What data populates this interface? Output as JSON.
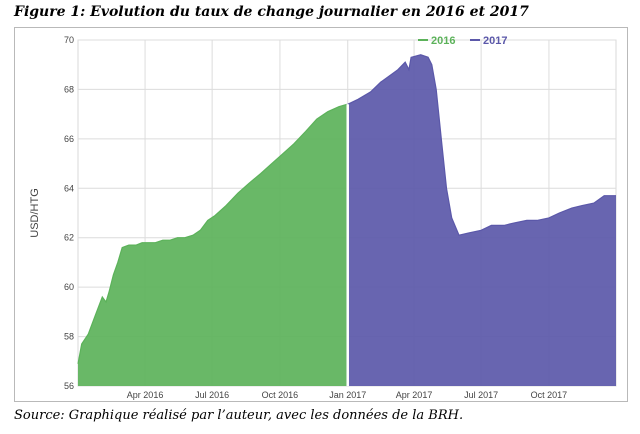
{
  "figure": {
    "title": "Figure 1: Evolution du taux de change journalier en 2016 et 2017",
    "source": "Source: Graphique réalisé par l’auteur, avec les données de la BRH."
  },
  "chart_data": {
    "type": "area",
    "ylabel": "USD/HTG",
    "xlabel": "",
    "ylim": [
      56,
      70
    ],
    "xlim": [
      "2016-01-01",
      "2017-12-31"
    ],
    "yticks": [
      56,
      58,
      60,
      62,
      64,
      66,
      68,
      70
    ],
    "xticks": [
      {
        "date": "2016-04-01",
        "label": "Apr 2016"
      },
      {
        "date": "2016-07-01",
        "label": "Jul 2016"
      },
      {
        "date": "2016-10-01",
        "label": "Oct 2016"
      },
      {
        "date": "2017-01-01",
        "label": "Jan 2017"
      },
      {
        "date": "2017-04-01",
        "label": "Apr 2017"
      },
      {
        "date": "2017-07-01",
        "label": "Jul 2017"
      },
      {
        "date": "2017-10-01",
        "label": "Oct 2017"
      }
    ],
    "grid": true,
    "legend_position": "top-center",
    "series": [
      {
        "name": "2016",
        "color": "#5cb25a",
        "points": [
          [
            "2016-01-01",
            56.9
          ],
          [
            "2016-01-06",
            57.7
          ],
          [
            "2016-01-15",
            58.1
          ],
          [
            "2016-01-25",
            58.9
          ],
          [
            "2016-02-03",
            59.6
          ],
          [
            "2016-02-08",
            59.4
          ],
          [
            "2016-02-12",
            59.8
          ],
          [
            "2016-02-18",
            60.5
          ],
          [
            "2016-02-24",
            61.0
          ],
          [
            "2016-03-01",
            61.6
          ],
          [
            "2016-03-10",
            61.7
          ],
          [
            "2016-03-20",
            61.7
          ],
          [
            "2016-03-28",
            61.8
          ],
          [
            "2016-04-05",
            61.8
          ],
          [
            "2016-04-15",
            61.8
          ],
          [
            "2016-04-25",
            61.9
          ],
          [
            "2016-05-05",
            61.9
          ],
          [
            "2016-05-15",
            62.0
          ],
          [
            "2016-05-25",
            62.0
          ],
          [
            "2016-06-05",
            62.1
          ],
          [
            "2016-06-15",
            62.3
          ],
          [
            "2016-06-25",
            62.7
          ],
          [
            "2016-07-05",
            62.9
          ],
          [
            "2016-07-20",
            63.3
          ],
          [
            "2016-08-05",
            63.8
          ],
          [
            "2016-08-20",
            64.2
          ],
          [
            "2016-09-05",
            64.6
          ],
          [
            "2016-09-20",
            65.0
          ],
          [
            "2016-10-05",
            65.4
          ],
          [
            "2016-10-20",
            65.8
          ],
          [
            "2016-11-05",
            66.3
          ],
          [
            "2016-11-20",
            66.8
          ],
          [
            "2016-12-05",
            67.1
          ],
          [
            "2016-12-20",
            67.3
          ],
          [
            "2016-12-31",
            67.4
          ]
        ]
      },
      {
        "name": "2017",
        "color": "#5b58a9",
        "points": [
          [
            "2017-01-01",
            67.4
          ],
          [
            "2017-01-15",
            67.6
          ],
          [
            "2017-02-01",
            67.9
          ],
          [
            "2017-02-15",
            68.3
          ],
          [
            "2017-03-01",
            68.6
          ],
          [
            "2017-03-10",
            68.8
          ],
          [
            "2017-03-20",
            69.1
          ],
          [
            "2017-03-25",
            68.8
          ],
          [
            "2017-03-28",
            69.3
          ],
          [
            "2017-04-10",
            69.4
          ],
          [
            "2017-04-20",
            69.3
          ],
          [
            "2017-04-25",
            69.0
          ],
          [
            "2017-05-01",
            68.0
          ],
          [
            "2017-05-08",
            66.0
          ],
          [
            "2017-05-15",
            64.0
          ],
          [
            "2017-05-22",
            62.8
          ],
          [
            "2017-06-01",
            62.1
          ],
          [
            "2017-06-15",
            62.2
          ],
          [
            "2017-07-01",
            62.3
          ],
          [
            "2017-07-15",
            62.5
          ],
          [
            "2017-08-01",
            62.5
          ],
          [
            "2017-08-15",
            62.6
          ],
          [
            "2017-09-01",
            62.7
          ],
          [
            "2017-09-15",
            62.7
          ],
          [
            "2017-10-01",
            62.8
          ],
          [
            "2017-10-15",
            63.0
          ],
          [
            "2017-11-01",
            63.2
          ],
          [
            "2017-11-15",
            63.3
          ],
          [
            "2017-12-01",
            63.4
          ],
          [
            "2017-12-15",
            63.7
          ],
          [
            "2017-12-31",
            63.7
          ]
        ]
      }
    ]
  }
}
